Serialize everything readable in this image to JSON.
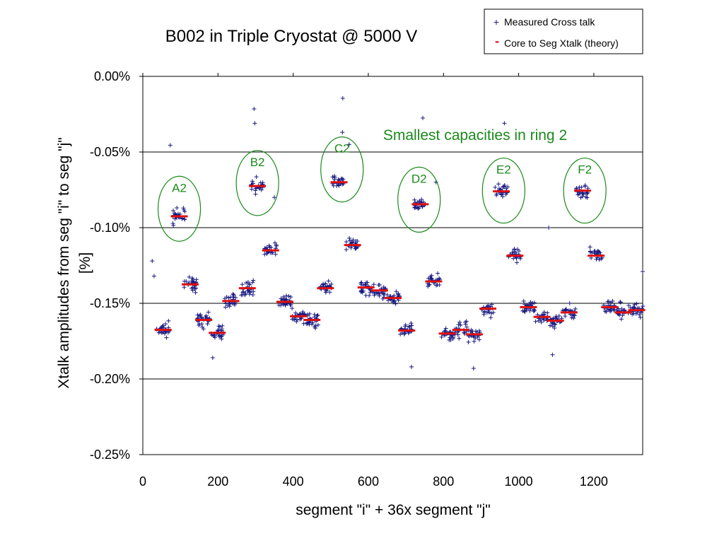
{
  "chart_data": {
    "type": "scatter",
    "title": "B002 in Triple Cryostat @ 5000 V",
    "xlabel": "segment \"i\" + 36x segment \"j\"",
    "ylabel_line1": "Xtalk amplitudes from seg \"i\" to seg \"j\"",
    "ylabel_line2": "[%]",
    "xlim": [
      0,
      1330
    ],
    "ylim": [
      -0.25,
      0.0
    ],
    "x_ticks": [
      0,
      200,
      400,
      600,
      800,
      1000,
      1200
    ],
    "x_tick_labels": [
      "0",
      "200",
      "400",
      "600",
      "800",
      "1000",
      "1200"
    ],
    "y_ticks": [
      0.0,
      -0.05,
      -0.1,
      -0.15,
      -0.2,
      -0.25
    ],
    "y_tick_labels": [
      "0.00%",
      "-0.05%",
      "-0.10%",
      "-0.15%",
      "-0.20%",
      "-0.25%"
    ],
    "y_gridlines": [
      -0.05,
      -0.1,
      -0.15,
      -0.2
    ],
    "grid": "horizontal",
    "legend": {
      "position": "top-right",
      "entries": [
        {
          "label": "Measured Cross talk",
          "marker": "+",
          "color": "#1a1a80"
        },
        {
          "label": "Core to Seg Xtalk (theory)",
          "marker": "-",
          "color": "#e01010"
        }
      ]
    },
    "annotation": "Smallest capacities in ring 2",
    "groups": [
      {
        "label": "A2",
        "center_x": 97,
        "center_y": -0.0875
      },
      {
        "label": "B2",
        "center_x": 305,
        "center_y": -0.0705
      },
      {
        "label": "C2",
        "center_x": 530,
        "center_y": -0.0615
      },
      {
        "label": "D2",
        "center_x": 735,
        "center_y": -0.0815
      },
      {
        "label": "E2",
        "center_x": 960,
        "center_y": -0.0755
      },
      {
        "label": "F2",
        "center_x": 1176,
        "center_y": -0.0755
      }
    ],
    "series": [
      {
        "name": "Core to Seg Xtalk (theory)",
        "style": "dash",
        "points": [
          [
            54,
            -0.1675
          ],
          [
            97,
            -0.0925
          ],
          [
            126,
            -0.1375
          ],
          [
            162,
            -0.161
          ],
          [
            198,
            -0.1695
          ],
          [
            234,
            -0.1485
          ],
          [
            278,
            -0.14
          ],
          [
            305,
            -0.0725
          ],
          [
            340,
            -0.115
          ],
          [
            378,
            -0.149
          ],
          [
            414,
            -0.1585
          ],
          [
            450,
            -0.161
          ],
          [
            486,
            -0.14
          ],
          [
            522,
            -0.07
          ],
          [
            558,
            -0.1115
          ],
          [
            594,
            -0.1395
          ],
          [
            630,
            -0.1415
          ],
          [
            666,
            -0.1465
          ],
          [
            702,
            -0.168
          ],
          [
            738,
            -0.0845
          ],
          [
            774,
            -0.1355
          ],
          [
            810,
            -0.17
          ],
          [
            846,
            -0.1675
          ],
          [
            882,
            -0.1705
          ],
          [
            918,
            -0.1535
          ],
          [
            954,
            -0.076
          ],
          [
            990,
            -0.1185
          ],
          [
            1026,
            -0.1525
          ],
          [
            1062,
            -0.159
          ],
          [
            1098,
            -0.1615
          ],
          [
            1134,
            -0.156
          ],
          [
            1170,
            -0.0755
          ],
          [
            1206,
            -0.1185
          ],
          [
            1242,
            -0.1525
          ],
          [
            1278,
            -0.156
          ],
          [
            1314,
            -0.1545
          ]
        ]
      },
      {
        "name": "Measured Cross talk",
        "style": "plus",
        "clusters": [
          [
            54,
            -0.1675
          ],
          [
            97,
            -0.0925
          ],
          [
            126,
            -0.1375
          ],
          [
            162,
            -0.161
          ],
          [
            198,
            -0.1695
          ],
          [
            234,
            -0.1485
          ],
          [
            278,
            -0.14
          ],
          [
            305,
            -0.0725
          ],
          [
            340,
            -0.115
          ],
          [
            378,
            -0.149
          ],
          [
            414,
            -0.1585
          ],
          [
            450,
            -0.161
          ],
          [
            486,
            -0.14
          ],
          [
            522,
            -0.07
          ],
          [
            558,
            -0.1115
          ],
          [
            594,
            -0.1395
          ],
          [
            630,
            -0.1415
          ],
          [
            666,
            -0.1465
          ],
          [
            702,
            -0.168
          ],
          [
            738,
            -0.0845
          ],
          [
            774,
            -0.1355
          ],
          [
            810,
            -0.17
          ],
          [
            846,
            -0.1675
          ],
          [
            882,
            -0.1705
          ],
          [
            918,
            -0.1535
          ],
          [
            954,
            -0.076
          ],
          [
            990,
            -0.1185
          ],
          [
            1026,
            -0.1525
          ],
          [
            1062,
            -0.159
          ],
          [
            1098,
            -0.1615
          ],
          [
            1134,
            -0.156
          ],
          [
            1170,
            -0.0755
          ],
          [
            1206,
            -0.1185
          ],
          [
            1242,
            -0.1525
          ],
          [
            1278,
            -0.156
          ],
          [
            1314,
            -0.1545
          ]
        ],
        "outliers": [
          [
            73,
            -0.0455
          ],
          [
            532,
            -0.0145
          ],
          [
            296,
            -0.0215
          ],
          [
            298,
            -0.031
          ],
          [
            745,
            -0.0275
          ],
          [
            962,
            -0.031
          ],
          [
            880,
            -0.193
          ],
          [
            715,
            -0.192
          ],
          [
            186,
            -0.186
          ],
          [
            1090,
            -0.184
          ],
          [
            1080,
            -0.1
          ],
          [
            531,
            -0.037
          ],
          [
            549,
            -0.045
          ],
          [
            350,
            -0.08
          ],
          [
            780,
            -0.07
          ],
          [
            30,
            -0.132
          ],
          [
            25,
            -0.122
          ],
          [
            1330,
            -0.129
          ]
        ]
      }
    ],
    "colors": {
      "measured": "#1a1a80",
      "theory": "#e01010",
      "annotation": "#1a8a1a",
      "grid": "#000000"
    }
  }
}
